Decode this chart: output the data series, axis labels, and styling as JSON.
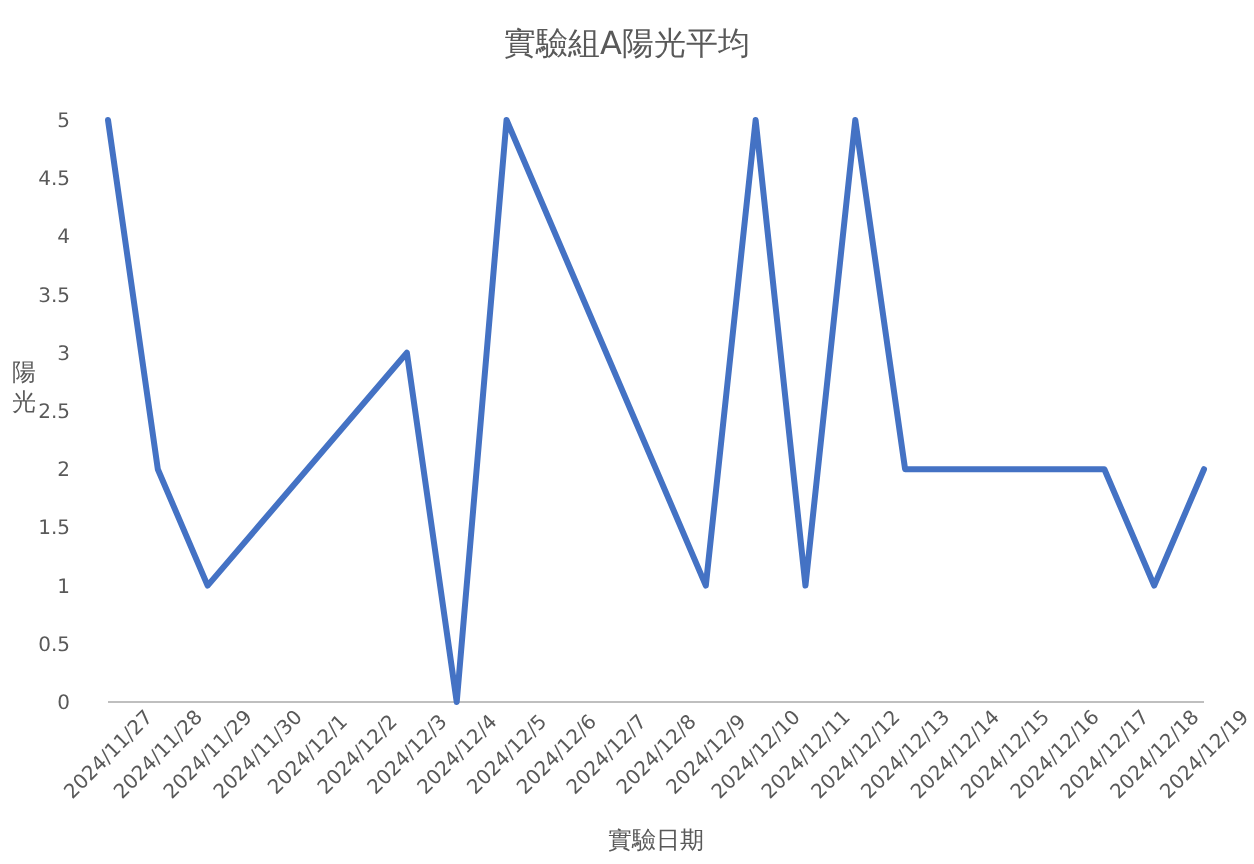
{
  "chart_data": {
    "type": "line",
    "title": "實驗組A陽光平均",
    "xlabel": "實驗日期",
    "ylabel": "陽光",
    "x": [
      "2024-11-27",
      "2024-11-28",
      "2024-11-29",
      "2024-12-03",
      "2024-12-04",
      "2024-12-05",
      "2024-12-09",
      "2024-12-10",
      "2024-12-11",
      "2024-12-12",
      "2024-12-13",
      "2024-12-17",
      "2024-12-18",
      "2024-12-19"
    ],
    "values": [
      5,
      2,
      1,
      3,
      0,
      5,
      1,
      5,
      1,
      5,
      2,
      2,
      1,
      2
    ],
    "color": "#4472c4",
    "marker": "none",
    "line_style": "solid",
    "grid": false,
    "xlim": [
      "2024-11-27",
      "2024-12-19"
    ],
    "xticks": [
      {
        "value": "2024-11-27",
        "label": "2024/11/27"
      },
      {
        "value": "2024-11-28",
        "label": "2024/11/28"
      },
      {
        "value": "2024-11-29",
        "label": "2024/11/29"
      },
      {
        "value": "2024-11-30",
        "label": "2024/11/30"
      },
      {
        "value": "2024-12-01",
        "label": "2024/12/1"
      },
      {
        "value": "2024-12-02",
        "label": "2024/12/2"
      },
      {
        "value": "2024-12-03",
        "label": "2024/12/3"
      },
      {
        "value": "2024-12-04",
        "label": "2024/12/4"
      },
      {
        "value": "2024-12-05",
        "label": "2024/12/5"
      },
      {
        "value": "2024-12-06",
        "label": "2024/12/6"
      },
      {
        "value": "2024-12-07",
        "label": "2024/12/7"
      },
      {
        "value": "2024-12-08",
        "label": "2024/12/8"
      },
      {
        "value": "2024-12-09",
        "label": "2024/12/9"
      },
      {
        "value": "2024-12-10",
        "label": "2024/12/10"
      },
      {
        "value": "2024-12-11",
        "label": "2024/12/11"
      },
      {
        "value": "2024-12-12",
        "label": "2024/12/12"
      },
      {
        "value": "2024-12-13",
        "label": "2024/12/13"
      },
      {
        "value": "2024-12-14",
        "label": "2024/12/14"
      },
      {
        "value": "2024-12-15",
        "label": "2024/12/15"
      },
      {
        "value": "2024-12-16",
        "label": "2024/12/16"
      },
      {
        "value": "2024-12-17",
        "label": "2024/12/17"
      },
      {
        "value": "2024-12-18",
        "label": "2024/12/18"
      },
      {
        "value": "2024-12-19",
        "label": "2024/12/19"
      }
    ],
    "ylim": [
      0,
      5
    ],
    "yticks": [
      0,
      0.5,
      1,
      1.5,
      2,
      2.5,
      3,
      3.5,
      4,
      4.5,
      5
    ]
  }
}
